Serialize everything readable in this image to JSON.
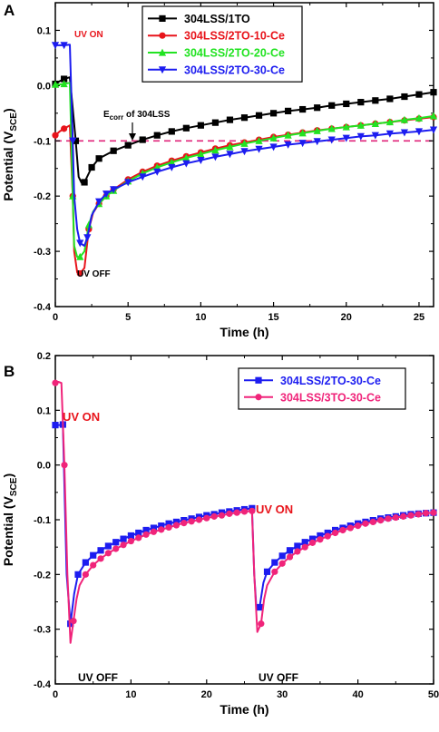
{
  "chart_data": [
    {
      "panel": "A",
      "type": "line",
      "xlabel": "Time (h)",
      "ylabel": "Potential (V",
      "ylabel_sub": "SCE",
      "ylabel_end": ")",
      "xlim": [
        0,
        26
      ],
      "ylim": [
        -0.4,
        0.15
      ],
      "xticks": [
        0,
        5,
        10,
        15,
        20,
        25
      ],
      "yticks": [
        -0.4,
        -0.3,
        -0.2,
        -0.1,
        0.0,
        0.1
      ],
      "ytick_labels": [
        "-0.4",
        "-0.3",
        "-0.2",
        "-0.1",
        "0.0",
        "0.1"
      ],
      "legend_position": "top-right",
      "reference_line": {
        "y": -0.1,
        "color": "#e0247a"
      },
      "annotations": {
        "uv_on": "UV ON",
        "uv_off": "UV OFF",
        "ecorr_main": "E",
        "ecorr_sub": "corr",
        "ecorr_rest": " of 304LSS"
      },
      "series": [
        {
          "name": "304LSS/1TO",
          "color": "#000000",
          "marker": "square",
          "x": [
            0,
            0.3,
            0.6,
            1.0,
            1.4,
            1.6,
            1.8,
            2.0,
            2.5,
            3.0,
            4.0,
            5.0,
            6.0,
            7.0,
            8.0,
            9.0,
            10.0,
            11.0,
            12.0,
            13.0,
            14.0,
            15.0,
            16.0,
            17.0,
            18.0,
            19.0,
            20.0,
            21.0,
            22.0,
            23.0,
            24.0,
            25.0,
            26.0
          ],
          "y": [
            0.003,
            0.008,
            0.012,
            0.015,
            -0.1,
            -0.165,
            -0.176,
            -0.175,
            -0.148,
            -0.132,
            -0.118,
            -0.108,
            -0.098,
            -0.09,
            -0.083,
            -0.077,
            -0.072,
            -0.067,
            -0.062,
            -0.058,
            -0.054,
            -0.05,
            -0.046,
            -0.043,
            -0.04,
            -0.036,
            -0.033,
            -0.03,
            -0.027,
            -0.024,
            -0.02,
            -0.016,
            -0.012
          ]
        },
        {
          "name": "304LSS/2TO-10-Ce",
          "color": "#e8141b",
          "marker": "circle",
          "x": [
            0,
            0.3,
            0.6,
            1.0,
            1.2,
            1.3,
            1.5,
            1.7,
            2.0,
            2.3,
            2.6,
            3.0,
            3.5,
            4.0,
            5.0,
            6.0,
            7.0,
            8.0,
            9.0,
            10.0,
            11.0,
            12.0,
            13.0,
            14.0,
            15.0,
            16.0,
            17.0,
            18.0,
            19.0,
            20.0,
            21.0,
            22.0,
            23.0,
            24.0,
            25.0,
            26.0
          ],
          "y": [
            -0.09,
            -0.083,
            -0.078,
            -0.072,
            -0.2,
            -0.3,
            -0.338,
            -0.34,
            -0.33,
            -0.26,
            -0.23,
            -0.214,
            -0.2,
            -0.188,
            -0.17,
            -0.156,
            -0.145,
            -0.136,
            -0.128,
            -0.121,
            -0.114,
            -0.108,
            -0.103,
            -0.098,
            -0.093,
            -0.089,
            -0.085,
            -0.081,
            -0.078,
            -0.075,
            -0.072,
            -0.069,
            -0.066,
            -0.063,
            -0.06,
            -0.057
          ]
        },
        {
          "name": "304LSS/2TO-20-Ce",
          "color": "#22e322",
          "marker": "triangle-up",
          "x": [
            0,
            0.3,
            0.6,
            1.0,
            1.2,
            1.3,
            1.5,
            1.7,
            2.0,
            2.3,
            2.6,
            3.0,
            3.5,
            4.0,
            5.0,
            6.0,
            7.0,
            8.0,
            9.0,
            10.0,
            11.0,
            12.0,
            13.0,
            14.0,
            15.0,
            16.0,
            17.0,
            18.0,
            19.0,
            20.0,
            21.0,
            22.0,
            23.0,
            24.0,
            25.0,
            26.0
          ],
          "y": [
            0.002,
            0.002,
            0.003,
            0.005,
            -0.2,
            -0.29,
            -0.31,
            -0.31,
            -0.3,
            -0.252,
            -0.228,
            -0.214,
            -0.2,
            -0.19,
            -0.173,
            -0.159,
            -0.148,
            -0.139,
            -0.131,
            -0.124,
            -0.117,
            -0.111,
            -0.105,
            -0.1,
            -0.095,
            -0.09,
            -0.086,
            -0.082,
            -0.078,
            -0.075,
            -0.072,
            -0.069,
            -0.066,
            -0.062,
            -0.059,
            -0.055
          ]
        },
        {
          "name": "304LSS/2TO-30-Ce",
          "color": "#1c1cf0",
          "marker": "triangle-down",
          "x": [
            0,
            0.3,
            0.6,
            1.0,
            1.2,
            1.3,
            1.5,
            1.7,
            2.0,
            2.2,
            2.5,
            3.0,
            3.5,
            4.0,
            5.0,
            6.0,
            7.0,
            8.0,
            9.0,
            10.0,
            11.0,
            12.0,
            13.0,
            14.0,
            15.0,
            16.0,
            17.0,
            18.0,
            19.0,
            20.0,
            21.0,
            22.0,
            23.0,
            24.0,
            25.0,
            26.0
          ],
          "y": [
            0.073,
            0.073,
            0.073,
            0.074,
            -0.1,
            -0.2,
            -0.26,
            -0.285,
            -0.29,
            -0.275,
            -0.235,
            -0.21,
            -0.196,
            -0.188,
            -0.175,
            -0.165,
            -0.156,
            -0.148,
            -0.141,
            -0.135,
            -0.129,
            -0.124,
            -0.119,
            -0.115,
            -0.111,
            -0.107,
            -0.104,
            -0.101,
            -0.098,
            -0.095,
            -0.092,
            -0.09,
            -0.087,
            -0.085,
            -0.083,
            -0.08
          ]
        }
      ]
    },
    {
      "panel": "B",
      "type": "line",
      "xlabel": "Time (h)",
      "ylabel": "Potential (V",
      "ylabel_sub": "SCE",
      "ylabel_end": ")",
      "xlim": [
        0,
        50
      ],
      "ylim": [
        -0.4,
        0.2
      ],
      "xticks": [
        0,
        10,
        20,
        30,
        40,
        50
      ],
      "yticks": [
        -0.4,
        -0.3,
        -0.2,
        -0.1,
        0.0,
        0.1,
        0.2
      ],
      "ytick_labels": [
        "-0.4",
        "-0.3",
        "-0.2",
        "-0.1",
        "0.0",
        "0.1",
        "0.2"
      ],
      "legend_position": "top-right",
      "annotations": {
        "uv_on_1": "UV ON",
        "uv_on_2": "UV ON",
        "uv_off_1": "UV OFF",
        "uv_off_2": "UV OFF"
      },
      "series": [
        {
          "name": "304LSS/2TO-30-Ce",
          "color": "#1c1cf0",
          "marker": "square",
          "x": [
            0,
            0.5,
            1.0,
            1.5,
            2.0,
            2.5,
            3,
            4,
            5,
            6,
            7,
            8,
            9,
            10,
            11,
            12,
            13,
            14,
            15,
            16,
            17,
            18,
            19,
            20,
            21,
            22,
            23,
            24,
            25,
            26,
            26.3,
            26.6,
            27.0,
            27.5,
            28,
            29,
            30,
            31,
            32,
            33,
            34,
            35,
            36,
            37,
            38,
            39,
            40,
            41,
            42,
            43,
            44,
            45,
            46,
            47,
            48,
            49,
            50
          ],
          "y": [
            0.073,
            0.073,
            0.074,
            -0.2,
            -0.29,
            -0.235,
            -0.2,
            -0.178,
            -0.165,
            -0.156,
            -0.148,
            -0.141,
            -0.135,
            -0.129,
            -0.124,
            -0.119,
            -0.115,
            -0.111,
            -0.107,
            -0.104,
            -0.101,
            -0.098,
            -0.095,
            -0.092,
            -0.09,
            -0.087,
            -0.085,
            -0.083,
            -0.081,
            -0.079,
            -0.2,
            -0.265,
            -0.26,
            -0.215,
            -0.195,
            -0.178,
            -0.166,
            -0.156,
            -0.148,
            -0.141,
            -0.135,
            -0.129,
            -0.124,
            -0.119,
            -0.115,
            -0.111,
            -0.107,
            -0.104,
            -0.101,
            -0.098,
            -0.096,
            -0.094,
            -0.092,
            -0.09,
            -0.089,
            -0.088,
            -0.087
          ]
        },
        {
          "name": "304LSS/3TO-30-Ce",
          "color": "#f0247a",
          "marker": "circle",
          "x": [
            0,
            0.4,
            0.8,
            1.2,
            1.6,
            2.0,
            2.4,
            2.8,
            3.2,
            4,
            5,
            6,
            7,
            8,
            9,
            10,
            11,
            12,
            13,
            14,
            15,
            16,
            17,
            18,
            19,
            20,
            21,
            22,
            23,
            24,
            25,
            26,
            26.3,
            26.7,
            27.2,
            27.6,
            28,
            29,
            30,
            31,
            32,
            33,
            34,
            35,
            36,
            37,
            38,
            39,
            40,
            41,
            42,
            43,
            44,
            45,
            46,
            47,
            48,
            49,
            50
          ],
          "y": [
            0.15,
            0.152,
            0.15,
            0.0,
            -0.2,
            -0.325,
            -0.285,
            -0.245,
            -0.22,
            -0.2,
            -0.183,
            -0.171,
            -0.161,
            -0.153,
            -0.146,
            -0.139,
            -0.133,
            -0.127,
            -0.122,
            -0.118,
            -0.114,
            -0.11,
            -0.106,
            -0.103,
            -0.1,
            -0.097,
            -0.094,
            -0.092,
            -0.089,
            -0.087,
            -0.085,
            -0.084,
            -0.2,
            -0.305,
            -0.29,
            -0.245,
            -0.22,
            -0.195,
            -0.18,
            -0.168,
            -0.158,
            -0.15,
            -0.142,
            -0.136,
            -0.13,
            -0.124,
            -0.119,
            -0.115,
            -0.111,
            -0.107,
            -0.104,
            -0.101,
            -0.098,
            -0.096,
            -0.094,
            -0.092,
            -0.09,
            -0.088,
            -0.087
          ]
        }
      ]
    }
  ]
}
